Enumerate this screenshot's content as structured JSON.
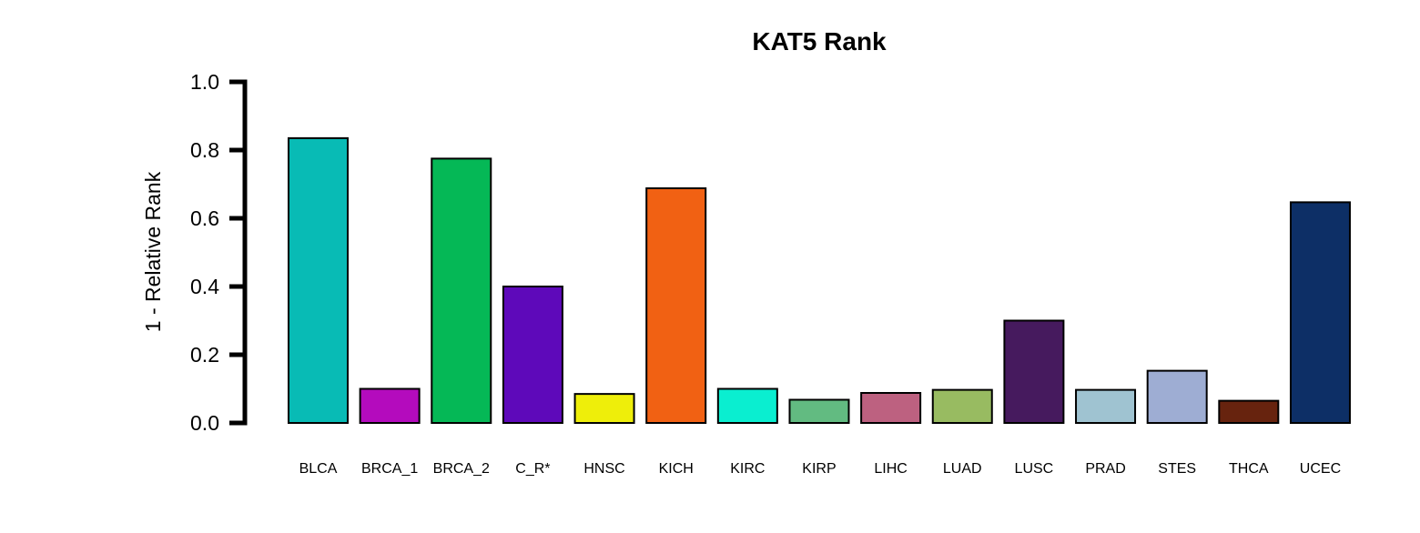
{
  "chart_data": {
    "type": "bar",
    "title": "KAT5 Rank",
    "xlabel": "",
    "ylabel": "1 - Relative Rank",
    "ylim": [
      0,
      1.0
    ],
    "yticks": [
      "0.0",
      "0.2",
      "0.4",
      "0.6",
      "0.8",
      "1.0"
    ],
    "grid": false,
    "legend": "none",
    "categories": [
      "BLCA",
      "BRCA_1",
      "BRCA_2",
      "C_R*",
      "HNSC",
      "KICH",
      "KIRC",
      "KIRP",
      "LIHC",
      "LUAD",
      "LUSC",
      "PRAD",
      "STES",
      "THCA",
      "UCEC"
    ],
    "values": [
      0.835,
      0.1,
      0.775,
      0.4,
      0.085,
      0.688,
      0.1,
      0.068,
      0.088,
      0.097,
      0.3,
      0.097,
      0.153,
      0.065,
      0.647
    ],
    "colors": [
      "#08bbb5",
      "#b40bbd",
      "#05b856",
      "#5e09ba",
      "#eeee0a",
      "#f16113",
      "#0aeed0",
      "#62bb81",
      "#bd6180",
      "#98bb61",
      "#461a5e",
      "#9fc3d1",
      "#9eadd3",
      "#67230e",
      "#0d2f66"
    ]
  }
}
